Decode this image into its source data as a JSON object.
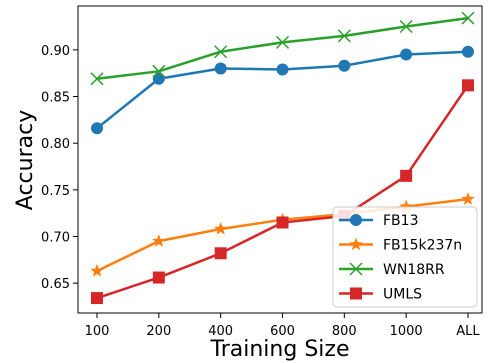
{
  "chart_data": {
    "type": "line",
    "title": "",
    "xlabel": "Training Size",
    "ylabel": "Accuracy",
    "categories": [
      "100",
      "200",
      "400",
      "600",
      "800",
      "1000",
      "ALL"
    ],
    "ylim": [
      0.618,
      0.947
    ],
    "yticks": [
      "0.65",
      "0.70",
      "0.75",
      "0.80",
      "0.85",
      "0.90"
    ],
    "grid": false,
    "legend_position": "bottom-right",
    "series": [
      {
        "name": "FB13",
        "color": "#1f77b4",
        "marker": "circle",
        "values": [
          0.816,
          0.869,
          0.88,
          0.879,
          0.883,
          0.895,
          0.898
        ]
      },
      {
        "name": "FB15k237n",
        "color": "#ff7f0e",
        "marker": "star",
        "values": [
          0.663,
          0.695,
          0.708,
          0.718,
          0.724,
          0.732,
          0.74
        ]
      },
      {
        "name": "WN18RR",
        "color": "#2ca02c",
        "marker": "x",
        "values": [
          0.869,
          0.877,
          0.898,
          0.908,
          0.915,
          0.925,
          0.934
        ]
      },
      {
        "name": "UMLS",
        "color": "#d62728",
        "marker": "square",
        "values": [
          0.634,
          0.656,
          0.682,
          0.715,
          0.722,
          0.765,
          0.862
        ]
      }
    ]
  }
}
